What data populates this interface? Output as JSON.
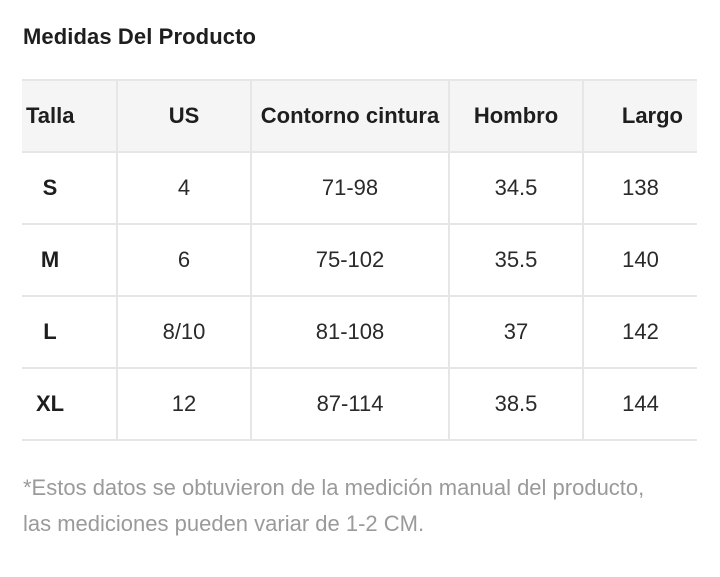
{
  "title": "Medidas Del Producto",
  "table": {
    "headers": [
      "Talla",
      "US",
      "Contorno cintura",
      "Hombro",
      "Largo"
    ],
    "rows": [
      [
        "S",
        "4",
        "71-98",
        "34.5",
        "138"
      ],
      [
        "M",
        "6",
        "75-102",
        "35.5",
        "140"
      ],
      [
        "L",
        "8/10",
        "81-108",
        "37",
        "142"
      ],
      [
        "XL",
        "12",
        "87-114",
        "38.5",
        "144"
      ]
    ]
  },
  "note": "*Estos datos se obtuvieron de la medición manual del producto, las mediciones pueden variar de 1-2 CM."
}
